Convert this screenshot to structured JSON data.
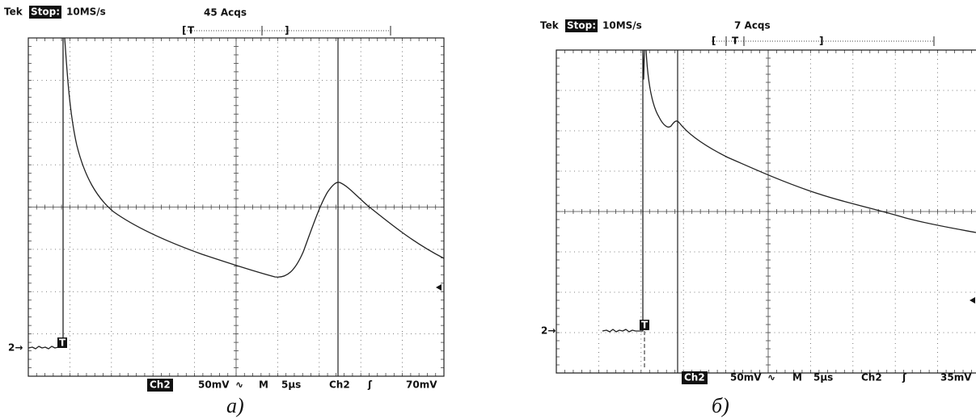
{
  "panels": [
    {
      "header": {
        "brand": "Tek",
        "status": "Stop:",
        "rate": "10MS/s",
        "acqs": "45 Acqs"
      },
      "record_bar": {
        "open": "[",
        "trigger": "T",
        "close": "]"
      },
      "channel_marker": "2→",
      "trigger_marker": "T",
      "footer": {
        "channel": "Ch2",
        "scale": "50mV",
        "coupling": "∿",
        "mode": "M",
        "timebase": "5µs",
        "trigger_source": "Ch2",
        "slope": "ʃ",
        "level": "70mV"
      },
      "caption": "а)"
    },
    {
      "header": {
        "brand": "Tek",
        "status": "Stop:",
        "rate": "10MS/s",
        "acqs": "7 Acqs"
      },
      "record_bar": {
        "open": "[",
        "trigger": "T",
        "close": "]"
      },
      "channel_marker": "2→",
      "trigger_marker": "T",
      "footer": {
        "channel": "Ch2",
        "scale": "50mV",
        "coupling": "∿",
        "mode": "M",
        "timebase": "5µs",
        "trigger_source": "Ch2",
        "slope": "ʃ",
        "level": "35mV"
      },
      "caption": "б)"
    }
  ]
}
